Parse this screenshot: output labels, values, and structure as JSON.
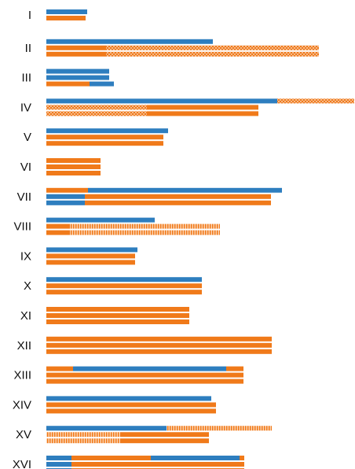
{
  "chart_data": {
    "type": "bar",
    "orientation": "horizontal",
    "stacked_segments": true,
    "x_unit": "pixels-equivalent length (no axis shown)",
    "colors": {
      "blue": "#2e7ebf",
      "orange": "#f07a1a",
      "pattern_checker": "checkered orange/white",
      "pattern_vertical": "vertical-striped orange/white"
    },
    "categories": [
      "I",
      "II",
      "III",
      "IV",
      "V",
      "VI",
      "VII",
      "VIII",
      "IX",
      "X",
      "XI",
      "XII",
      "XIII",
      "XIV",
      "XV",
      "XVI"
    ],
    "rows": [
      {
        "label": "I",
        "bars": [
          [
            {
              "color": "blue",
              "from": 0,
              "to": 52
            }
          ],
          [
            {
              "color": "orange",
              "from": 0,
              "to": 50
            }
          ]
        ]
      },
      {
        "label": "II",
        "bars": [
          [
            {
              "color": "blue",
              "from": 0,
              "to": 212
            }
          ],
          [
            {
              "color": "orange",
              "from": 0,
              "to": 76
            },
            {
              "color": "checker",
              "from": 76,
              "to": 347
            }
          ],
          [
            {
              "color": "orange",
              "from": 0,
              "to": 76
            },
            {
              "color": "checker",
              "from": 76,
              "to": 347
            }
          ]
        ]
      },
      {
        "label": "III",
        "bars": [
          [
            {
              "color": "blue",
              "from": 0,
              "to": 80
            }
          ],
          [
            {
              "color": "blue",
              "from": 0,
              "to": 80
            }
          ],
          [
            {
              "color": "orange",
              "from": 0,
              "to": 55
            },
            {
              "color": "blue",
              "from": 55,
              "to": 86
            }
          ]
        ]
      },
      {
        "label": "IV",
        "bars": [
          [
            {
              "color": "blue",
              "from": 0,
              "to": 294
            },
            {
              "color": "checker",
              "from": 294,
              "to": 392
            }
          ],
          [
            {
              "color": "checker",
              "from": 0,
              "to": 128
            },
            {
              "color": "orange",
              "from": 128,
              "to": 270
            }
          ],
          [
            {
              "color": "checker",
              "from": 0,
              "to": 128
            },
            {
              "color": "orange",
              "from": 128,
              "to": 270
            }
          ]
        ]
      },
      {
        "label": "V",
        "bars": [
          [
            {
              "color": "blue",
              "from": 0,
              "to": 155
            }
          ],
          [
            {
              "color": "orange",
              "from": 0,
              "to": 149
            }
          ],
          [
            {
              "color": "orange",
              "from": 0,
              "to": 149
            }
          ]
        ]
      },
      {
        "label": "VI",
        "bars": [
          [
            {
              "color": "orange",
              "from": 0,
              "to": 69
            }
          ],
          [
            {
              "color": "orange",
              "from": 0,
              "to": 69
            }
          ],
          [
            {
              "color": "orange",
              "from": 0,
              "to": 69
            }
          ]
        ]
      },
      {
        "label": "VII",
        "bars": [
          [
            {
              "color": "orange",
              "from": 0,
              "to": 53
            },
            {
              "color": "blue",
              "from": 53,
              "to": 300
            }
          ],
          [
            {
              "color": "blue",
              "from": 0,
              "to": 49
            },
            {
              "color": "orange",
              "from": 49,
              "to": 286
            }
          ],
          [
            {
              "color": "blue",
              "from": 0,
              "to": 49
            },
            {
              "color": "orange",
              "from": 49,
              "to": 286
            }
          ]
        ]
      },
      {
        "label": "VIII",
        "bars": [
          [
            {
              "color": "blue",
              "from": 0,
              "to": 138
            }
          ],
          [
            {
              "color": "orange",
              "from": 0,
              "to": 30
            },
            {
              "color": "vstripe",
              "from": 30,
              "to": 221
            }
          ],
          [
            {
              "color": "orange",
              "from": 0,
              "to": 30
            },
            {
              "color": "vstripe",
              "from": 30,
              "to": 221
            }
          ]
        ]
      },
      {
        "label": "IX",
        "bars": [
          [
            {
              "color": "blue",
              "from": 0,
              "to": 116
            }
          ],
          [
            {
              "color": "orange",
              "from": 0,
              "to": 113
            }
          ],
          [
            {
              "color": "orange",
              "from": 0,
              "to": 113
            }
          ]
        ]
      },
      {
        "label": "X",
        "bars": [
          [
            {
              "color": "blue",
              "from": 0,
              "to": 198
            }
          ],
          [
            {
              "color": "orange",
              "from": 0,
              "to": 198
            }
          ],
          [
            {
              "color": "orange",
              "from": 0,
              "to": 198
            }
          ]
        ]
      },
      {
        "label": "XI",
        "bars": [
          [
            {
              "color": "orange",
              "from": 0,
              "to": 182
            }
          ],
          [
            {
              "color": "orange",
              "from": 0,
              "to": 182
            }
          ],
          [
            {
              "color": "orange",
              "from": 0,
              "to": 182
            }
          ]
        ]
      },
      {
        "label": "XII",
        "bars": [
          [
            {
              "color": "orange",
              "from": 0,
              "to": 287
            }
          ],
          [
            {
              "color": "orange",
              "from": 0,
              "to": 287
            }
          ],
          [
            {
              "color": "orange",
              "from": 0,
              "to": 287
            }
          ]
        ]
      },
      {
        "label": "XIII",
        "bars": [
          [
            {
              "color": "orange",
              "from": 0,
              "to": 34
            },
            {
              "color": "blue",
              "from": 34,
              "to": 229
            },
            {
              "color": "orange",
              "from": 229,
              "to": 251
            }
          ],
          [
            {
              "color": "orange",
              "from": 0,
              "to": 251
            }
          ],
          [
            {
              "color": "orange",
              "from": 0,
              "to": 251
            }
          ]
        ]
      },
      {
        "label": "XIV",
        "bars": [
          [
            {
              "color": "blue",
              "from": 0,
              "to": 210
            }
          ],
          [
            {
              "color": "orange",
              "from": 0,
              "to": 216
            }
          ],
          [
            {
              "color": "orange",
              "from": 0,
              "to": 216
            }
          ]
        ]
      },
      {
        "label": "XV",
        "bars": [
          [
            {
              "color": "blue",
              "from": 0,
              "to": 153
            },
            {
              "color": "vstripe",
              "from": 153,
              "to": 287
            }
          ],
          [
            {
              "color": "vstripe",
              "from": 0,
              "to": 94
            },
            {
              "color": "orange",
              "from": 94,
              "to": 207
            }
          ],
          [
            {
              "color": "vstripe",
              "from": 0,
              "to": 94
            },
            {
              "color": "orange",
              "from": 94,
              "to": 207
            }
          ]
        ]
      },
      {
        "label": "XVI",
        "bars": [
          [
            {
              "color": "blue",
              "from": 0,
              "to": 32
            },
            {
              "color": "orange",
              "from": 32,
              "to": 133
            },
            {
              "color": "blue",
              "from": 133,
              "to": 246
            },
            {
              "color": "orange",
              "from": 246,
              "to": 252
            }
          ],
          [
            {
              "color": "blue",
              "from": 0,
              "to": 32
            },
            {
              "color": "orange",
              "from": 32,
              "to": 252
            }
          ],
          [
            {
              "color": "blue",
              "from": 0,
              "to": 32
            },
            {
              "color": "orange",
              "from": 32,
              "to": 252
            }
          ]
        ]
      }
    ],
    "title": "",
    "xlabel": "",
    "ylabel": "",
    "grid": false,
    "legend": "none"
  }
}
